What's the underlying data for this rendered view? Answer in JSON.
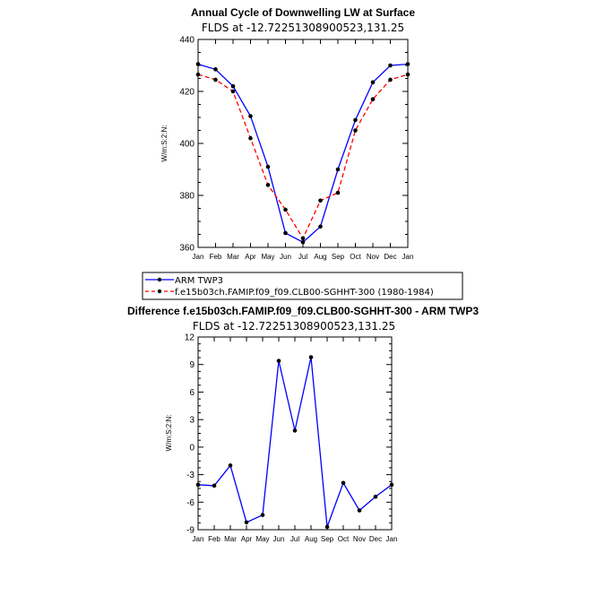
{
  "chart_data": [
    {
      "type": "line",
      "title": "Annual Cycle of Downwelling LW at Surface",
      "subtitle": "FLDS at -12.72251308900523,131.25",
      "ylabel": "W/m:S:2:N:",
      "ylim": [
        360,
        440
      ],
      "yticks": [
        360,
        380,
        400,
        420,
        440
      ],
      "categories": [
        "Jan",
        "Feb",
        "Mar",
        "Apr",
        "May",
        "Jun",
        "Jul",
        "Aug",
        "Sep",
        "Oct",
        "Nov",
        "Dec",
        "Jan"
      ],
      "series": [
        {
          "name": "ARM TWP3",
          "color": "#0000ff",
          "dash": "solid",
          "values": [
            430.5,
            428.5,
            422.0,
            410.5,
            391.0,
            365.5,
            362.0,
            368.0,
            390.0,
            409.0,
            423.5,
            430.0,
            430.5
          ]
        },
        {
          "name": "f.e15b03ch.FAMIP.f09_f09.CLB00-SGHHT-300 (1980-1984)",
          "color": "#ff0000",
          "dash": "dashed",
          "values": [
            426.5,
            424.5,
            420.0,
            402.0,
            384.0,
            374.5,
            363.5,
            378.0,
            381.0,
            405.0,
            417.0,
            424.5,
            426.5
          ]
        }
      ],
      "legend": "bottom-left"
    },
    {
      "type": "line",
      "title": "Difference f.e15b03ch.FAMIP.f09_f09.CLB00-SGHHT-300 - ARM TWP3",
      "subtitle": "FLDS at -12.72251308900523,131.25",
      "ylabel": "W/m:S:2:N:",
      "ylim": [
        -9,
        12
      ],
      "yticks": [
        -9,
        -6,
        -3,
        0,
        3,
        6,
        9,
        12
      ],
      "categories": [
        "Jan",
        "Feb",
        "Mar",
        "Apr",
        "May",
        "Jun",
        "Jul",
        "Aug",
        "Sep",
        "Oct",
        "Nov",
        "Dec",
        "Jan"
      ],
      "series": [
        {
          "color": "#0000ff",
          "dash": "solid",
          "values": [
            -4.1,
            -4.2,
            -2.0,
            -8.2,
            -7.4,
            9.4,
            1.8,
            9.8,
            -8.7,
            -3.9,
            -6.9,
            -5.4,
            -4.1
          ]
        }
      ]
    }
  ],
  "legend": {
    "entries": [
      "ARM TWP3",
      "f.e15b03ch.FAMIP.f09_f09.CLB00-SGHHT-300 (1980-1984)"
    ]
  }
}
